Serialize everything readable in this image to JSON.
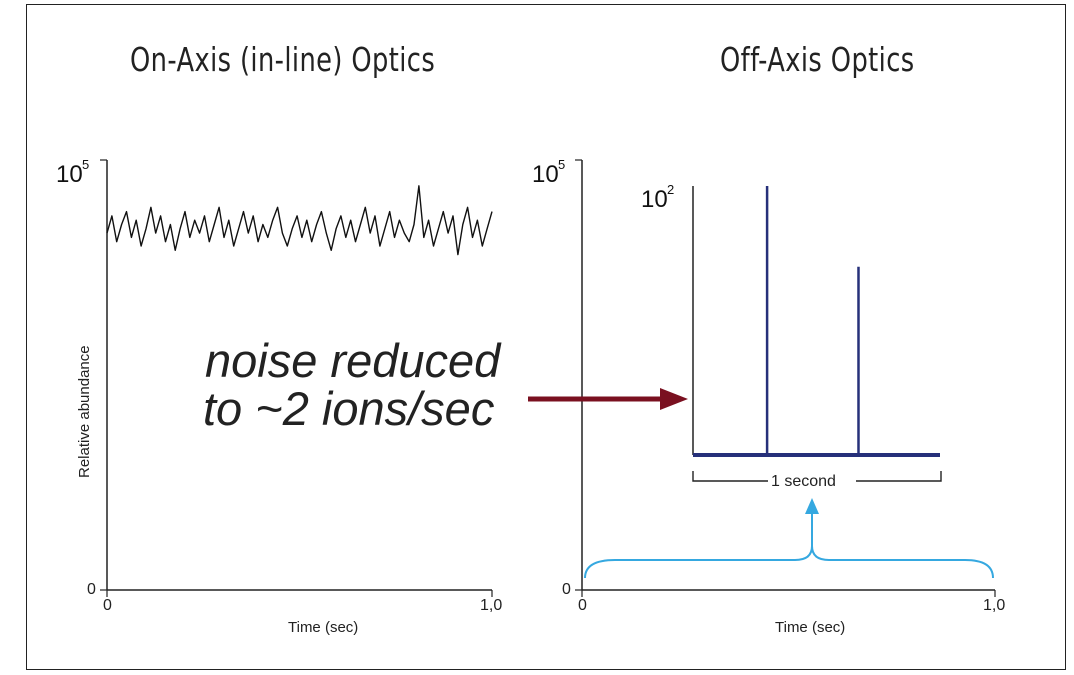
{
  "titles": {
    "left": "On-Axis (in-line) Optics",
    "right": "Off-Axis Optics"
  },
  "annotation": {
    "line1": "noise reduced",
    "line2": "to ~2 ions/sec"
  },
  "colors": {
    "noise": "#111111",
    "inset": "#26307a",
    "arrow": "#7a1020",
    "brace": "#35a8e0"
  },
  "chart_data": [
    {
      "type": "line",
      "title": "On-Axis (in-line) Optics",
      "xlabel": "Time (sec)",
      "ylabel": "Relative abundance",
      "x_ticks": [
        "0",
        "1,0"
      ],
      "y_ticks": {
        "min": "0",
        "max_base": "10",
        "max_exp": "5"
      },
      "xlim": [
        0,
        1.0
      ],
      "ylim": [
        0,
        100000
      ],
      "series": [
        {
          "values": [
            83000,
            87000,
            81000,
            85000,
            88000,
            82000,
            86000,
            80000,
            84000,
            89000,
            83000,
            87000,
            81000,
            85000,
            79000,
            84000,
            88000,
            82000,
            86000,
            83000,
            87000,
            81000,
            85000,
            89000,
            82000,
            86000,
            80000,
            84000,
            88000,
            83000,
            87000,
            81000,
            85000,
            82000,
            86000,
            89000,
            83000,
            80000,
            84000,
            87000,
            82000,
            86000,
            81000,
            85000,
            88000,
            83000,
            79000,
            84000,
            87000,
            82000,
            86000,
            81000,
            85000,
            89000,
            83000,
            87000,
            80000,
            84000,
            88000,
            82000,
            86000,
            83000,
            81000,
            85000,
            94000,
            82000,
            86000,
            80000,
            84000,
            88000,
            83000,
            87000,
            78000,
            85000,
            89000,
            82000,
            86000,
            80000,
            84000,
            88000
          ]
        }
      ]
    },
    {
      "type": "line",
      "title": "Off-Axis Optics",
      "xlabel": "Time (sec)",
      "x_ticks": [
        "0",
        "1,0"
      ],
      "y_ticks": {
        "min": "0",
        "max_base": "10",
        "max_exp": "5"
      },
      "xlim": [
        0,
        1.0
      ],
      "ylim": [
        0,
        100000
      ],
      "inset": {
        "y_tick": {
          "base": "10",
          "exp": "2"
        },
        "ylim": [
          0,
          100
        ],
        "xlim": [
          0,
          1.0
        ],
        "scale_label": "1 second",
        "peaks": [
          {
            "x": 0.3,
            "value": 100
          },
          {
            "x": 0.67,
            "value": 70
          }
        ]
      }
    }
  ]
}
